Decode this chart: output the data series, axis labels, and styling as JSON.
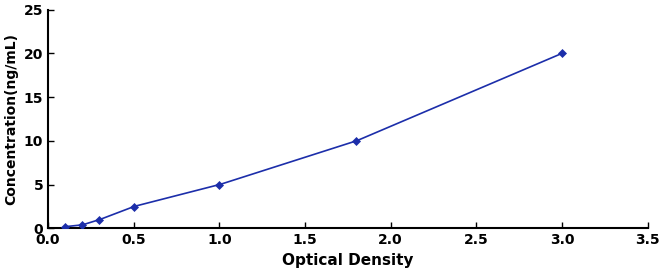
{
  "x_data": [
    0.1,
    0.2,
    0.3,
    0.5,
    1.0,
    1.8,
    3.0
  ],
  "y_data": [
    0.2,
    0.4,
    1.0,
    2.5,
    5.0,
    10.0,
    20.0
  ],
  "line_color": "#1C2EAA",
  "marker": "D",
  "marker_size": 4,
  "marker_color": "#1C2EAA",
  "line_width": 1.2,
  "xlabel": "Optical Density",
  "ylabel": "Concentration(ng/mL)",
  "xlim": [
    0,
    3.5
  ],
  "ylim": [
    0,
    25
  ],
  "xticks": [
    0,
    0.5,
    1.0,
    1.5,
    2.0,
    2.5,
    3.0,
    3.5
  ],
  "yticks": [
    0,
    5,
    10,
    15,
    20,
    25
  ],
  "xlabel_fontsize": 11,
  "ylabel_fontsize": 10,
  "tick_fontsize": 10,
  "background_color": "#ffffff",
  "spine_color": "#000000",
  "figsize": [
    6.64,
    2.72
  ],
  "dpi": 100
}
